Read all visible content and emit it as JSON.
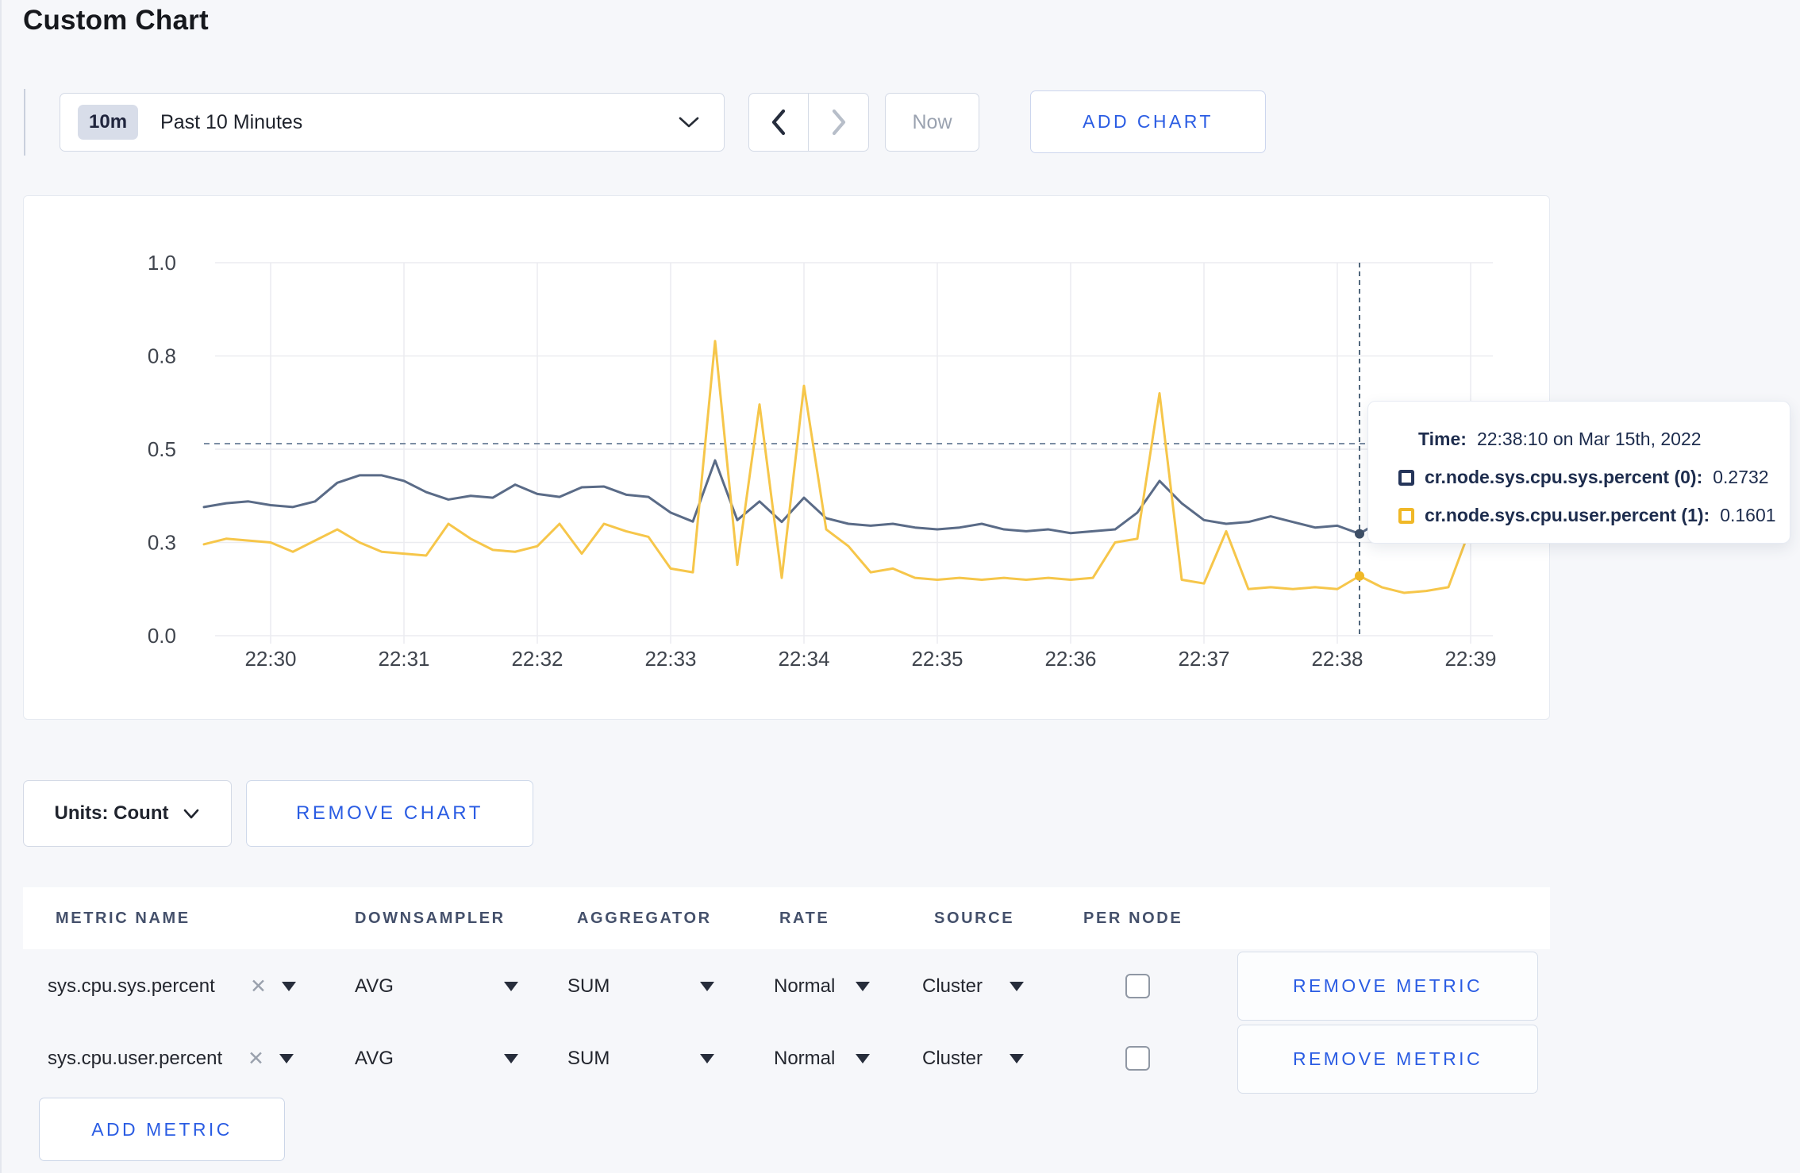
{
  "page": {
    "title": "Custom Chart"
  },
  "toolbar": {
    "range_badge": "10m",
    "range_label": "Past 10 Minutes",
    "now_label": "Now",
    "add_chart_label": "ADD CHART"
  },
  "chart_controls": {
    "units_label": "Units: Count",
    "remove_chart_label": "REMOVE CHART"
  },
  "tooltip": {
    "time_label": "Time:",
    "time_value": "22:38:10 on Mar 15th, 2022",
    "series": [
      {
        "label": "cr.node.sys.cpu.sys.percent (0):",
        "value": "0.2732",
        "color": "#25355a"
      },
      {
        "label": "cr.node.sys.cpu.user.percent (1):",
        "value": "0.1601",
        "color": "#f0b827"
      }
    ]
  },
  "chart_data": {
    "type": "line",
    "title": "",
    "xlabel": "",
    "ylabel": "",
    "ylim": [
      0,
      1.0
    ],
    "grid": true,
    "legend_position": "none",
    "y_tick_labels": [
      "1.0",
      "0.8",
      "0.5",
      "0.3",
      "0.0"
    ],
    "y_tick_values": [
      1.0,
      0.75,
      0.5,
      0.25,
      0.0
    ],
    "x_tick_labels": [
      "22:30",
      "22:31",
      "22:32",
      "22:33",
      "22:34",
      "22:35",
      "22:36",
      "22:37",
      "22:38",
      "22:39"
    ],
    "x_tick_seconds": [
      0,
      60,
      120,
      180,
      240,
      300,
      360,
      420,
      480,
      540
    ],
    "x_domain_seconds_after_2230": [
      -30,
      550
    ],
    "dashed_line_value": 0.515,
    "crosshair": {
      "seconds": 490,
      "time": "22:38:10 on Mar 15th, 2022",
      "values": [
        0.2732,
        0.1601
      ]
    },
    "series": [
      {
        "name": "cr.node.sys.cpu.sys.percent",
        "color": "#5a6b87",
        "points": [
          [
            -30,
            0.345
          ],
          [
            -20,
            0.355
          ],
          [
            -10,
            0.36
          ],
          [
            0,
            0.35
          ],
          [
            10,
            0.345
          ],
          [
            20,
            0.36
          ],
          [
            30,
            0.41
          ],
          [
            40,
            0.43
          ],
          [
            50,
            0.43
          ],
          [
            60,
            0.415
          ],
          [
            70,
            0.385
          ],
          [
            80,
            0.365
          ],
          [
            90,
            0.375
          ],
          [
            100,
            0.37
          ],
          [
            110,
            0.405
          ],
          [
            120,
            0.38
          ],
          [
            130,
            0.372
          ],
          [
            140,
            0.398
          ],
          [
            150,
            0.4
          ],
          [
            160,
            0.378
          ],
          [
            170,
            0.372
          ],
          [
            180,
            0.33
          ],
          [
            190,
            0.306
          ],
          [
            200,
            0.47
          ],
          [
            210,
            0.31
          ],
          [
            220,
            0.36
          ],
          [
            230,
            0.305
          ],
          [
            240,
            0.37
          ],
          [
            250,
            0.315
          ],
          [
            260,
            0.3
          ],
          [
            270,
            0.295
          ],
          [
            280,
            0.3
          ],
          [
            290,
            0.29
          ],
          [
            300,
            0.285
          ],
          [
            310,
            0.29
          ],
          [
            320,
            0.3
          ],
          [
            330,
            0.285
          ],
          [
            340,
            0.28
          ],
          [
            350,
            0.285
          ],
          [
            360,
            0.275
          ],
          [
            370,
            0.28
          ],
          [
            380,
            0.285
          ],
          [
            390,
            0.33
          ],
          [
            400,
            0.415
          ],
          [
            410,
            0.355
          ],
          [
            420,
            0.31
          ],
          [
            430,
            0.3
          ],
          [
            440,
            0.305
          ],
          [
            450,
            0.32
          ],
          [
            460,
            0.305
          ],
          [
            470,
            0.29
          ],
          [
            480,
            0.295
          ],
          [
            490,
            0.2732
          ],
          [
            500,
            0.31
          ],
          [
            510,
            0.32
          ],
          [
            520,
            0.29
          ],
          [
            530,
            0.275
          ],
          [
            540,
            0.3
          ],
          [
            550,
            0.31
          ]
        ]
      },
      {
        "name": "cr.node.sys.cpu.user.percent",
        "color": "#f6c64a",
        "points": [
          [
            -30,
            0.245
          ],
          [
            -20,
            0.26
          ],
          [
            -10,
            0.255
          ],
          [
            0,
            0.25
          ],
          [
            10,
            0.225
          ],
          [
            20,
            0.255
          ],
          [
            30,
            0.285
          ],
          [
            40,
            0.25
          ],
          [
            50,
            0.225
          ],
          [
            60,
            0.22
          ],
          [
            70,
            0.215
          ],
          [
            80,
            0.3
          ],
          [
            90,
            0.26
          ],
          [
            100,
            0.23
          ],
          [
            110,
            0.225
          ],
          [
            120,
            0.24
          ],
          [
            130,
            0.3
          ],
          [
            140,
            0.22
          ],
          [
            150,
            0.3
          ],
          [
            160,
            0.28
          ],
          [
            170,
            0.265
          ],
          [
            180,
            0.18
          ],
          [
            190,
            0.17
          ],
          [
            200,
            0.79
          ],
          [
            210,
            0.19
          ],
          [
            220,
            0.62
          ],
          [
            230,
            0.155
          ],
          [
            240,
            0.67
          ],
          [
            250,
            0.285
          ],
          [
            260,
            0.24
          ],
          [
            270,
            0.17
          ],
          [
            280,
            0.18
          ],
          [
            290,
            0.155
          ],
          [
            300,
            0.15
          ],
          [
            310,
            0.155
          ],
          [
            320,
            0.15
          ],
          [
            330,
            0.155
          ],
          [
            340,
            0.15
          ],
          [
            350,
            0.155
          ],
          [
            360,
            0.15
          ],
          [
            370,
            0.155
          ],
          [
            380,
            0.25
          ],
          [
            390,
            0.26
          ],
          [
            400,
            0.65
          ],
          [
            410,
            0.15
          ],
          [
            420,
            0.14
          ],
          [
            430,
            0.28
          ],
          [
            440,
            0.125
          ],
          [
            450,
            0.13
          ],
          [
            460,
            0.125
          ],
          [
            470,
            0.13
          ],
          [
            480,
            0.125
          ],
          [
            490,
            0.1601
          ],
          [
            500,
            0.13
          ],
          [
            510,
            0.115
          ],
          [
            520,
            0.12
          ],
          [
            530,
            0.13
          ],
          [
            540,
            0.29
          ],
          [
            550,
            0.25
          ]
        ]
      }
    ]
  },
  "metrics_table": {
    "headers": [
      "METRIC NAME",
      "DOWNSAMPLER",
      "AGGREGATOR",
      "RATE",
      "SOURCE",
      "PER NODE"
    ],
    "rows": [
      {
        "metric_name": "sys.cpu.sys.percent",
        "downsampler": "AVG",
        "aggregator": "SUM",
        "rate": "Normal",
        "source": "Cluster",
        "per_node_checked": false,
        "remove_label": "REMOVE METRIC"
      },
      {
        "metric_name": "sys.cpu.user.percent",
        "downsampler": "AVG",
        "aggregator": "SUM",
        "rate": "Normal",
        "source": "Cluster",
        "per_node_checked": false,
        "remove_label": "REMOVE METRIC"
      }
    ],
    "add_metric_label": "ADD METRIC"
  }
}
